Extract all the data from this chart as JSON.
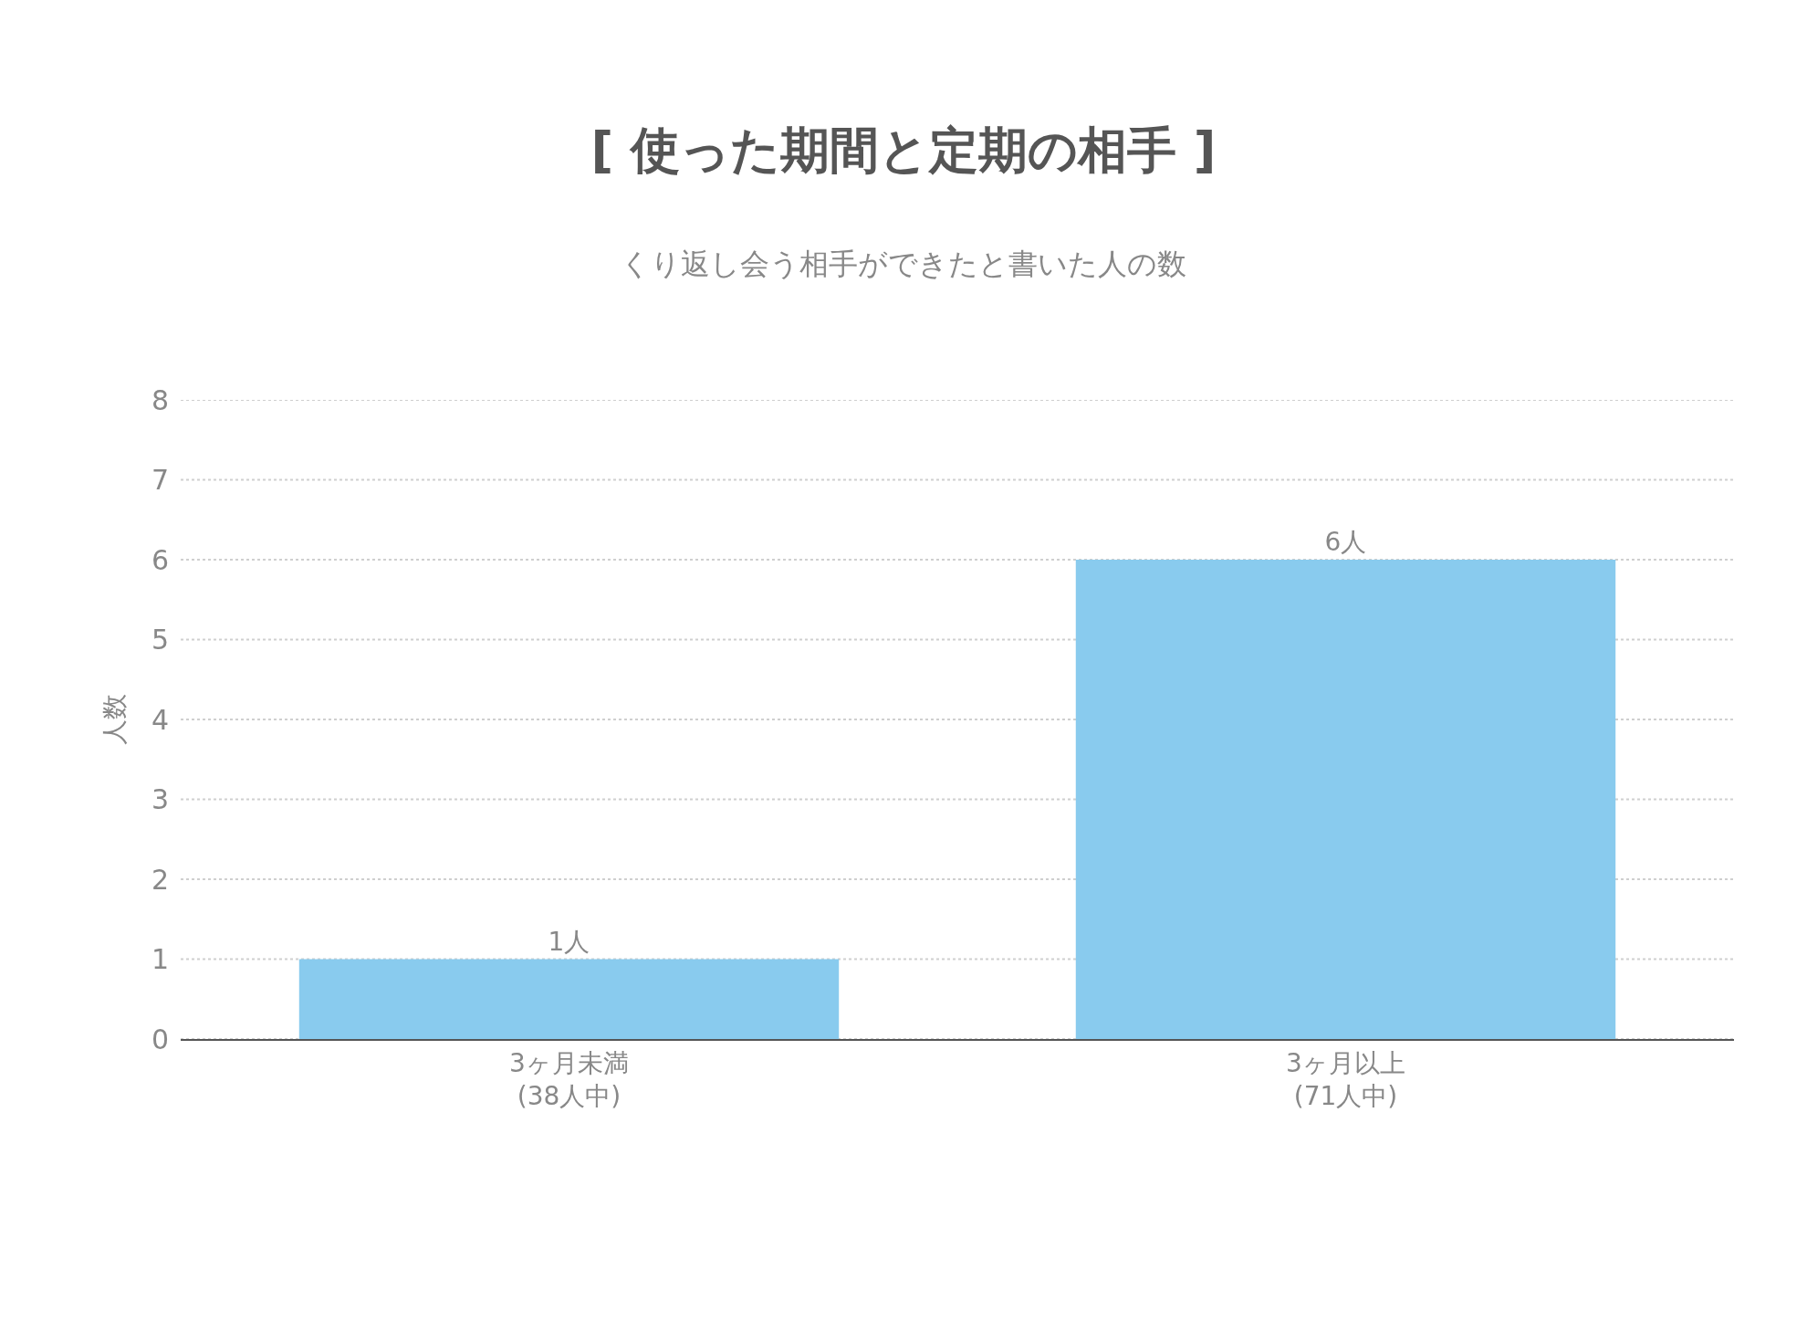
{
  "chart_data": {
    "type": "bar",
    "title": "[ 使った期間と定期の相手 ]",
    "subtitle": "くり返し会う相手ができたと書いた人の数",
    "ylabel": "人数",
    "categories": [
      "3ヶ月未満\n(38人中)",
      "3ヶ月以上\n(71人中)"
    ],
    "values": [
      1,
      6
    ],
    "color": "#89cbee",
    "value_labels": [
      "1人",
      "6人"
    ],
    "ylim": [
      0,
      8
    ],
    "yticks": [
      0,
      1,
      2,
      3,
      4,
      5,
      6,
      7,
      8
    ],
    "grid": "y"
  }
}
